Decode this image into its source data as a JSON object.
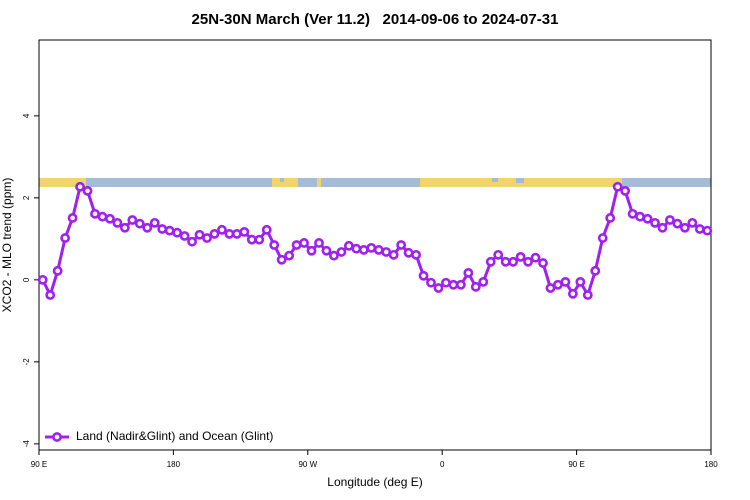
{
  "chart_data": {
    "type": "line",
    "title": "25N-30N March (Ver 11.2)   2014-09-06 to 2024-07-31",
    "x_label": "Longitude (deg E)",
    "y_label": "XCO2 - MLO trend (ppm)",
    "xlim": [
      90,
      540
    ],
    "xticks": [
      {
        "value": 90,
        "label": "90 E"
      },
      {
        "value": 180,
        "label": "180"
      },
      {
        "value": 270,
        "label": "90 W"
      },
      {
        "value": 360,
        "label": "0"
      },
      {
        "value": 450,
        "label": "90 E"
      },
      {
        "value": 540,
        "label": "180"
      }
    ],
    "ylim": [
      -4.15,
      5.85
    ],
    "yticks": [
      -4,
      -2,
      0,
      2,
      4
    ],
    "legend": "lower left",
    "x": [
      92.5,
      97.5,
      102.5,
      107.5,
      112.5,
      117.5,
      122.5,
      127.5,
      132.5,
      137.5,
      142.5,
      147.5,
      152.5,
      157.5,
      162.5,
      167.5,
      172.5,
      177.5,
      182.5,
      187.5,
      192.5,
      197.5,
      202.5,
      207.5,
      212.5,
      217.5,
      222.5,
      227.5,
      232.5,
      237.5,
      242.5,
      247.5,
      252.5,
      257.5,
      262.5,
      267.5,
      272.5,
      277.5,
      282.5,
      287.5,
      292.5,
      297.5,
      302.5,
      307.5,
      312.5,
      317.5,
      322.5,
      327.5,
      332.5,
      337.5,
      342.5,
      347.5,
      352.5,
      357.5,
      362.5,
      367.5,
      372.5,
      377.5,
      382.5,
      387.5,
      392.5,
      397.5,
      402.5,
      407.5,
      412.5,
      417.5,
      422.5,
      427.5,
      432.5,
      437.5,
      442.5,
      447.5,
      452.5,
      457.5,
      462.5,
      467.5,
      472.5,
      477.5,
      482.5,
      487.5,
      492.5,
      497.5,
      502.5,
      507.5,
      512.5,
      517.5,
      522.5,
      527.5,
      532.5,
      537.5
    ],
    "series": [
      {
        "name": "Land (Nadir&Glint) and Ocean (Glint)",
        "color": "#a020f0",
        "values": [
          0,
          -0.37,
          0.22,
          1.02,
          1.51,
          2.27,
          2.17,
          1.61,
          1.54,
          1.49,
          1.39,
          1.27,
          1.46,
          1.37,
          1.27,
          1.39,
          1.24,
          1.2,
          1.15,
          1.07,
          0.93,
          1.1,
          1.02,
          1.12,
          1.22,
          1.12,
          1.12,
          1.17,
          0.98,
          0.98,
          1.22,
          0.85,
          0.49,
          0.59,
          0.85,
          0.9,
          0.71,
          0.9,
          0.71,
          0.59,
          0.68,
          0.83,
          0.76,
          0.73,
          0.78,
          0.73,
          0.68,
          0.61,
          0.85,
          0.66,
          0.61,
          0.1,
          -0.07,
          -0.2,
          -0.07,
          -0.12,
          -0.12,
          0.17,
          -0.17,
          -0.05,
          0.44,
          0.61,
          0.44,
          0.44,
          0.56,
          0.44,
          0.54,
          0.41,
          -0.2,
          -0.12,
          -0.05,
          -0.34,
          -0.05,
          -0.37,
          0.22,
          1.02,
          1.51,
          2.27,
          2.17,
          1.61,
          1.54,
          1.49,
          1.39,
          1.27,
          1.46,
          1.37,
          1.27,
          1.39,
          1.24,
          1.2
        ]
      }
    ]
  }
}
